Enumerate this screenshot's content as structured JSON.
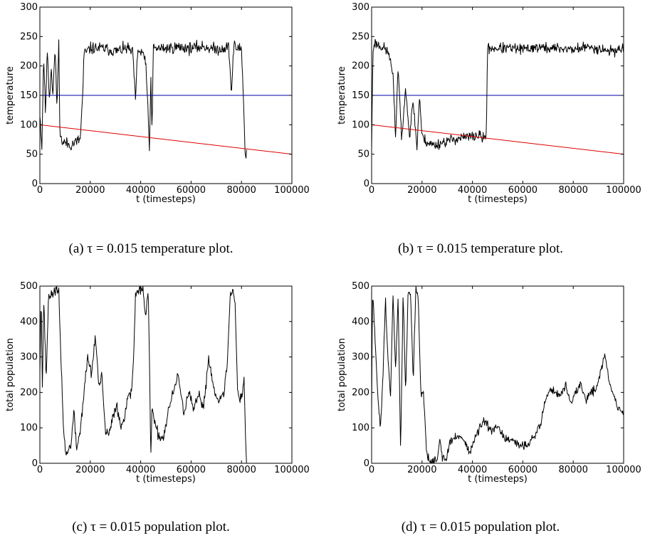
{
  "chart_data": [
    {
      "id": "a",
      "type": "line",
      "caption": "(a) τ = 0.015 temperature plot.",
      "xlabel": "t (timesteps)",
      "ylabel": "temperature",
      "xlim": [
        0,
        100000
      ],
      "ylim": [
        0,
        300
      ],
      "xticks": [
        0,
        20000,
        40000,
        60000,
        80000,
        100000
      ],
      "yticks": [
        0,
        50,
        100,
        150,
        200,
        250,
        300
      ],
      "series": [
        {
          "color": "#000000",
          "noise": 10,
          "seed": 11,
          "x": [
            0,
            800,
            1500,
            2200,
            3000,
            3800,
            4500,
            5200,
            6000,
            6800,
            7500,
            8000,
            9000,
            10000,
            12000,
            14000,
            16000,
            17000,
            17500,
            20000,
            25000,
            30000,
            35000,
            37000,
            37500,
            38000,
            38500,
            39000,
            40000,
            41000,
            42000,
            43000,
            43500,
            44000,
            44500,
            45000,
            50000,
            55000,
            60000,
            65000,
            70000,
            75000,
            76000,
            76500,
            77000,
            78000,
            80000,
            81000,
            81500,
            82000
          ],
          "y": [
            120,
            60,
            220,
            120,
            230,
            140,
            200,
            150,
            230,
            130,
            240,
            80,
            70,
            70,
            65,
            70,
            75,
            150,
            220,
            230,
            230,
            225,
            230,
            220,
            170,
            140,
            200,
            230,
            220,
            225,
            200,
            120,
            50,
            190,
            80,
            230,
            230,
            232,
            230,
            233,
            228,
            232,
            150,
            200,
            235,
            230,
            230,
            120,
            40,
            55
          ]
        },
        {
          "color": "#0000aa",
          "noise": 0,
          "seed": 0,
          "x": [
            0,
            100000
          ],
          "y": [
            150,
            150
          ]
        },
        {
          "color": "#dd0000",
          "noise": 0,
          "seed": 0,
          "x": [
            0,
            100000
          ],
          "y": [
            100,
            50
          ]
        }
      ]
    },
    {
      "id": "b",
      "type": "line",
      "caption": "(b) τ = 0.015 temperature plot.",
      "xlabel": "t (timesteps)",
      "ylabel": "temperature",
      "xlim": [
        0,
        100000
      ],
      "ylim": [
        0,
        300
      ],
      "xticks": [
        0,
        20000,
        40000,
        60000,
        80000,
        100000
      ],
      "yticks": [
        0,
        50,
        100,
        150,
        200,
        250,
        300
      ],
      "series": [
        {
          "color": "#000000",
          "noise": 9,
          "seed": 23,
          "x": [
            0,
            500,
            1000,
            3000,
            5000,
            7000,
            8500,
            9500,
            10500,
            12000,
            13500,
            15000,
            16500,
            18000,
            19000,
            20000,
            22000,
            25000,
            28000,
            32000,
            36000,
            40000,
            43000,
            44500,
            45500,
            46000,
            50000,
            55000,
            60000,
            65000,
            70000,
            75000,
            80000,
            85000,
            90000,
            95000,
            100000
          ],
          "y": [
            60,
            220,
            240,
            235,
            230,
            220,
            180,
            80,
            200,
            70,
            170,
            80,
            140,
            60,
            150,
            80,
            70,
            65,
            70,
            75,
            78,
            80,
            82,
            75,
            85,
            230,
            230,
            230,
            228,
            232,
            230,
            230,
            228,
            232,
            230,
            225,
            230
          ]
        },
        {
          "color": "#0000aa",
          "noise": 0,
          "seed": 0,
          "x": [
            0,
            100000
          ],
          "y": [
            150,
            150
          ]
        },
        {
          "color": "#dd0000",
          "noise": 0,
          "seed": 0,
          "x": [
            0,
            100000
          ],
          "y": [
            100,
            50
          ]
        }
      ]
    },
    {
      "id": "c",
      "type": "line",
      "caption": "(c) τ = 0.015 population plot.",
      "xlabel": "t (timesteps)",
      "ylabel": "total population",
      "xlim": [
        0,
        100000
      ],
      "ylim": [
        0,
        500
      ],
      "xticks": [
        0,
        20000,
        40000,
        60000,
        80000,
        100000
      ],
      "yticks": [
        0,
        100,
        200,
        300,
        400,
        500
      ],
      "series": [
        {
          "color": "#000000",
          "noise": 15,
          "seed": 37,
          "x": [
            0,
            500,
            1000,
            1500,
            2500,
            3500,
            4500,
            6000,
            7500,
            8500,
            9500,
            10500,
            11500,
            12500,
            13500,
            14500,
            16000,
            17500,
            19000,
            20500,
            22000,
            23500,
            24500,
            26000,
            27500,
            29000,
            30500,
            32000,
            33500,
            35000,
            36000,
            37000,
            38000,
            39500,
            41000,
            42000,
            43000,
            43500,
            44000,
            44500,
            45500,
            47000,
            49000,
            51000,
            53000,
            55000,
            57000,
            59000,
            61000,
            63000,
            65000,
            67000,
            69000,
            71000,
            73000,
            74500,
            75500,
            76500,
            77500,
            78500,
            79500,
            80500,
            81000,
            81500,
            82000
          ],
          "y": [
            260,
            480,
            200,
            470,
            240,
            480,
            470,
            490,
            480,
            270,
            80,
            20,
            40,
            60,
            150,
            40,
            90,
            200,
            300,
            250,
            360,
            210,
            250,
            90,
            80,
            130,
            170,
            100,
            130,
            200,
            180,
            270,
            480,
            490,
            480,
            410,
            480,
            300,
            10,
            160,
            110,
            80,
            70,
            150,
            200,
            250,
            140,
            200,
            150,
            190,
            160,
            300,
            210,
            180,
            190,
            300,
            470,
            490,
            450,
            200,
            180,
            200,
            250,
            100,
            0
          ]
        }
      ]
    },
    {
      "id": "d",
      "type": "line",
      "caption": "(d) τ = 0.015 population plot.",
      "xlabel": "t (timesteps)",
      "ylabel": "total population",
      "xlim": [
        0,
        100000
      ],
      "ylim": [
        0,
        500
      ],
      "xticks": [
        0,
        20000,
        40000,
        60000,
        80000,
        100000
      ],
      "yticks": [
        0,
        100,
        200,
        300,
        400,
        500
      ],
      "series": [
        {
          "color": "#000000",
          "noise": 12,
          "seed": 51,
          "x": [
            0,
            300,
            800,
            1500,
            2500,
            3500,
            4500,
            5500,
            6500,
            7500,
            8500,
            9500,
            10500,
            11500,
            12500,
            13500,
            14500,
            15500,
            16500,
            17500,
            18500,
            19500,
            20500,
            21500,
            22000,
            23000,
            24500,
            26000,
            27000,
            28000,
            29500,
            31000,
            33000,
            35000,
            37000,
            39000,
            41000,
            43000,
            45000,
            47000,
            50000,
            53000,
            56000,
            59000,
            62000,
            65000,
            67000,
            69000,
            71000,
            73000,
            75000,
            77000,
            79000,
            81000,
            83000,
            85000,
            87000,
            89000,
            91000,
            92500,
            94000,
            95500,
            97000,
            98500,
            100000
          ],
          "y": [
            140,
            470,
            440,
            320,
            190,
            100,
            250,
            460,
            300,
            180,
            480,
            260,
            470,
            30,
            480,
            200,
            490,
            480,
            230,
            490,
            470,
            200,
            200,
            80,
            20,
            5,
            5,
            10,
            70,
            20,
            5,
            60,
            70,
            80,
            60,
            30,
            70,
            100,
            120,
            90,
            100,
            70,
            60,
            50,
            55,
            80,
            110,
            180,
            210,
            200,
            190,
            220,
            170,
            200,
            220,
            180,
            200,
            210,
            260,
            310,
            240,
            200,
            170,
            150,
            140
          ]
        }
      ]
    }
  ]
}
